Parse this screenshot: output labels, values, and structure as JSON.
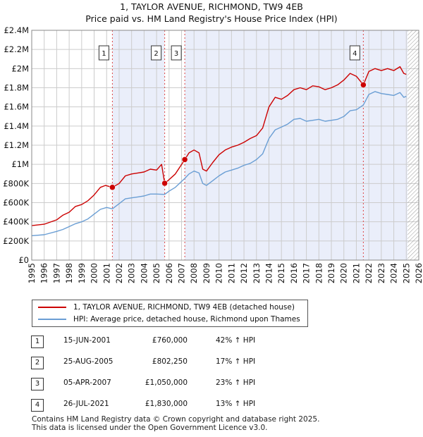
{
  "title": "1, TAYLOR AVENUE, RICHMOND, TW9 4EB",
  "subtitle": "Price paid vs. HM Land Registry's House Price Index (HPI)",
  "chart_data": {
    "type": "line",
    "y_ticks": [
      {
        "value": 0,
        "label": "£0"
      },
      {
        "value": 200000,
        "label": "£200K"
      },
      {
        "value": 400000,
        "label": "£400K"
      },
      {
        "value": 600000,
        "label": "£600K"
      },
      {
        "value": 800000,
        "label": "£800K"
      },
      {
        "value": 1000000,
        "label": "£1M"
      },
      {
        "value": 1200000,
        "label": "£1.2M"
      },
      {
        "value": 1400000,
        "label": "£1.4M"
      },
      {
        "value": 1600000,
        "label": "£1.6M"
      },
      {
        "value": 1800000,
        "label": "£1.8M"
      },
      {
        "value": 2000000,
        "label": "£2M"
      },
      {
        "value": 2200000,
        "label": "£2.2M"
      },
      {
        "value": 2400000,
        "label": "£2.4M"
      }
    ],
    "x_ticks": [
      "1995",
      "1996",
      "1997",
      "1998",
      "1999",
      "2000",
      "2001",
      "2002",
      "2003",
      "2004",
      "2005",
      "2006",
      "2007",
      "2008",
      "2009",
      "2010",
      "2011",
      "2012",
      "2013",
      "2014",
      "2015",
      "2016",
      "2017",
      "2018",
      "2019",
      "2020",
      "2021",
      "2022",
      "2023",
      "2024",
      "2025",
      "2026"
    ],
    "xlim": [
      1995,
      2026
    ],
    "ylim": [
      0,
      2400000
    ],
    "grid": true,
    "future_hatch_from": 2025.1,
    "series": [
      {
        "name": "1, TAYLOR AVENUE, RICHMOND, TW9 4EB (detached house)",
        "color": "#cc0000",
        "points": [
          [
            1995.0,
            360000
          ],
          [
            1996.0,
            375000
          ],
          [
            1997.0,
            420000
          ],
          [
            1997.5,
            470000
          ],
          [
            1998.0,
            500000
          ],
          [
            1998.5,
            560000
          ],
          [
            1999.0,
            580000
          ],
          [
            1999.5,
            620000
          ],
          [
            2000.0,
            680000
          ],
          [
            2000.5,
            760000
          ],
          [
            2000.9,
            780000
          ],
          [
            2001.46,
            760000
          ],
          [
            2002.0,
            800000
          ],
          [
            2002.5,
            880000
          ],
          [
            2003.0,
            900000
          ],
          [
            2003.5,
            910000
          ],
          [
            2004.0,
            920000
          ],
          [
            2004.5,
            950000
          ],
          [
            2005.0,
            940000
          ],
          [
            2005.4,
            1000000
          ],
          [
            2005.65,
            802250
          ],
          [
            2006.0,
            840000
          ],
          [
            2006.5,
            900000
          ],
          [
            2007.26,
            1050000
          ],
          [
            2007.6,
            1120000
          ],
          [
            2008.0,
            1150000
          ],
          [
            2008.4,
            1120000
          ],
          [
            2008.7,
            950000
          ],
          [
            2009.0,
            930000
          ],
          [
            2009.5,
            1020000
          ],
          [
            2010.0,
            1100000
          ],
          [
            2010.5,
            1150000
          ],
          [
            2011.0,
            1180000
          ],
          [
            2011.5,
            1200000
          ],
          [
            2012.0,
            1230000
          ],
          [
            2012.5,
            1270000
          ],
          [
            2013.0,
            1300000
          ],
          [
            2013.5,
            1380000
          ],
          [
            2014.0,
            1600000
          ],
          [
            2014.5,
            1700000
          ],
          [
            2015.0,
            1680000
          ],
          [
            2015.5,
            1720000
          ],
          [
            2016.0,
            1780000
          ],
          [
            2016.5,
            1800000
          ],
          [
            2017.0,
            1780000
          ],
          [
            2017.5,
            1820000
          ],
          [
            2018.0,
            1810000
          ],
          [
            2018.5,
            1780000
          ],
          [
            2019.0,
            1800000
          ],
          [
            2019.5,
            1830000
          ],
          [
            2020.0,
            1880000
          ],
          [
            2020.5,
            1950000
          ],
          [
            2021.0,
            1920000
          ],
          [
            2021.56,
            1830000
          ],
          [
            2022.0,
            1970000
          ],
          [
            2022.5,
            2000000
          ],
          [
            2023.0,
            1980000
          ],
          [
            2023.5,
            2000000
          ],
          [
            2024.0,
            1980000
          ],
          [
            2024.5,
            2020000
          ],
          [
            2024.8,
            1950000
          ],
          [
            2025.0,
            1940000
          ]
        ]
      },
      {
        "name": "HPI: Average price, detached house, Richmond upon Thames",
        "color": "#6a9ed4",
        "points": [
          [
            1995.0,
            255000
          ],
          [
            1996.0,
            265000
          ],
          [
            1997.0,
            300000
          ],
          [
            1997.5,
            320000
          ],
          [
            1998.0,
            350000
          ],
          [
            1998.5,
            380000
          ],
          [
            1999.0,
            400000
          ],
          [
            1999.5,
            430000
          ],
          [
            2000.0,
            480000
          ],
          [
            2000.5,
            530000
          ],
          [
            2001.0,
            550000
          ],
          [
            2001.46,
            535000
          ],
          [
            2002.0,
            590000
          ],
          [
            2002.5,
            640000
          ],
          [
            2003.0,
            650000
          ],
          [
            2003.5,
            660000
          ],
          [
            2004.0,
            670000
          ],
          [
            2004.5,
            690000
          ],
          [
            2005.0,
            690000
          ],
          [
            2005.65,
            686000
          ],
          [
            2006.0,
            720000
          ],
          [
            2006.5,
            760000
          ],
          [
            2007.26,
            853000
          ],
          [
            2007.6,
            900000
          ],
          [
            2008.0,
            930000
          ],
          [
            2008.4,
            910000
          ],
          [
            2008.7,
            800000
          ],
          [
            2009.0,
            780000
          ],
          [
            2009.5,
            830000
          ],
          [
            2010.0,
            880000
          ],
          [
            2010.5,
            920000
          ],
          [
            2011.0,
            940000
          ],
          [
            2011.5,
            960000
          ],
          [
            2012.0,
            990000
          ],
          [
            2012.5,
            1010000
          ],
          [
            2013.0,
            1050000
          ],
          [
            2013.5,
            1110000
          ],
          [
            2014.0,
            1270000
          ],
          [
            2014.5,
            1360000
          ],
          [
            2015.0,
            1390000
          ],
          [
            2015.5,
            1420000
          ],
          [
            2016.0,
            1470000
          ],
          [
            2016.5,
            1480000
          ],
          [
            2017.0,
            1450000
          ],
          [
            2017.5,
            1460000
          ],
          [
            2018.0,
            1470000
          ],
          [
            2018.5,
            1450000
          ],
          [
            2019.0,
            1460000
          ],
          [
            2019.5,
            1470000
          ],
          [
            2020.0,
            1500000
          ],
          [
            2020.5,
            1560000
          ],
          [
            2021.0,
            1570000
          ],
          [
            2021.56,
            1620000
          ],
          [
            2022.0,
            1730000
          ],
          [
            2022.5,
            1760000
          ],
          [
            2023.0,
            1740000
          ],
          [
            2023.5,
            1730000
          ],
          [
            2024.0,
            1720000
          ],
          [
            2024.5,
            1750000
          ],
          [
            2024.8,
            1700000
          ],
          [
            2025.0,
            1710000
          ]
        ]
      }
    ],
    "sales": [
      {
        "num": "1",
        "x": 2001.46,
        "price": 760000,
        "date": "15-JUN-2001",
        "price_label": "£760,000",
        "hpi": "42% ↑ HPI"
      },
      {
        "num": "2",
        "x": 2005.65,
        "price": 802250,
        "date": "25-AUG-2005",
        "price_label": "£802,250",
        "hpi": "17% ↑ HPI"
      },
      {
        "num": "3",
        "x": 2007.26,
        "price": 1050000,
        "date": "05-APR-2007",
        "price_label": "£1,050,000",
        "hpi": "23% ↑ HPI"
      },
      {
        "num": "4",
        "x": 2021.56,
        "price": 1830000,
        "date": "26-JUL-2021",
        "price_label": "£1,830,000",
        "hpi": "13% ↑ HPI"
      }
    ]
  },
  "legend": {
    "property_label": "1, TAYLOR AVENUE, RICHMOND, TW9 4EB (detached house)",
    "hpi_label": "HPI: Average price, detached house, Richmond upon Thames"
  },
  "footer": {
    "line1": "Contains HM Land Registry data © Crown copyright and database right 2025.",
    "line2": "This data is licensed under the Open Government Licence v3.0."
  },
  "colors": {
    "property": "#cc0000",
    "hpi": "#6a9ed4",
    "shade": "#eaeefa",
    "grid": "#cccccc",
    "dash": "#dd4444"
  }
}
